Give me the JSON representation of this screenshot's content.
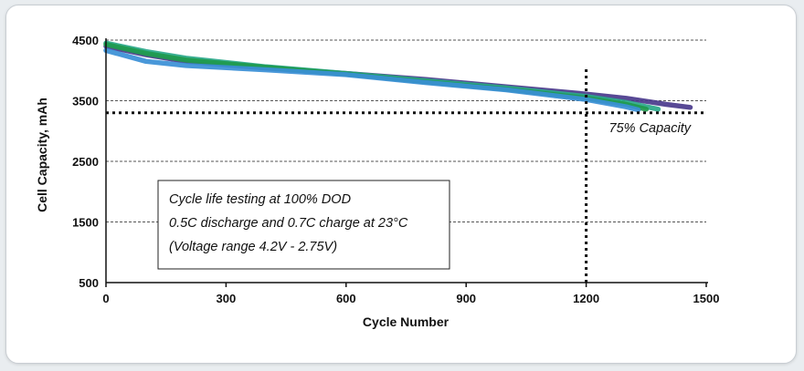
{
  "chart_data": {
    "type": "line",
    "xlabel": "Cycle Number",
    "ylabel": "Cell Capacity, mAh",
    "xlim": [
      0,
      1500
    ],
    "ylim": [
      500,
      4500
    ],
    "x_ticks": [
      "0",
      "300",
      "600",
      "900",
      "1200",
      "1500"
    ],
    "y_ticks": [
      "4500",
      "3500",
      "2500",
      "1500",
      "500"
    ],
    "grid": "horizontal dashed",
    "series": [
      {
        "color": "#4a3a8c",
        "x": [
          0,
          100,
          200,
          400,
          600,
          800,
          1000,
          1200,
          1300,
          1400,
          1460
        ],
        "y": [
          4400,
          4260,
          4150,
          4040,
          3950,
          3850,
          3730,
          3610,
          3540,
          3440,
          3390
        ]
      },
      {
        "color": "#2aa88a",
        "x": [
          0,
          100,
          200,
          400,
          600,
          800,
          1000,
          1200,
          1300,
          1380
        ],
        "y": [
          4450,
          4310,
          4200,
          4060,
          3950,
          3830,
          3710,
          3570,
          3470,
          3360
        ]
      },
      {
        "color": "#1f9a4d",
        "x": [
          0,
          100,
          200,
          400,
          600,
          800,
          1000,
          1200,
          1300,
          1350
        ],
        "y": [
          4430,
          4280,
          4170,
          4050,
          3940,
          3810,
          3690,
          3540,
          3440,
          3360
        ]
      },
      {
        "color": "#3a8fd6",
        "x": [
          0,
          100,
          200,
          400,
          600,
          800,
          1000,
          1200,
          1300,
          1330
        ],
        "y": [
          4330,
          4150,
          4080,
          4010,
          3930,
          3800,
          3680,
          3520,
          3400,
          3350
        ]
      }
    ],
    "reference_lines": [
      {
        "axis": "y",
        "value": 3300,
        "label": "75% Capacity"
      },
      {
        "axis": "x",
        "value": 1200,
        "label": ""
      }
    ],
    "annotation_lines": [
      "Cycle life testing at 100% DOD",
      "0.5C discharge and 0.7C charge at 23°C",
      "(Voltage range 4.2V - 2.75V)"
    ]
  }
}
